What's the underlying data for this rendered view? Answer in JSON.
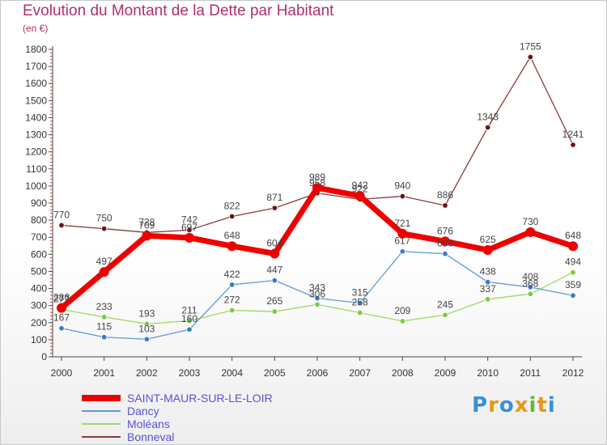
{
  "title": "Evolution du Montant de la Dette par Habitant",
  "subtitle": "(en €)",
  "logo": {
    "text": "Proxiti",
    "colors": [
      "#3a8fd8",
      "#e8961a",
      "#3a8fd8",
      "#e8961a",
      "#5fb93a",
      "#e8961a",
      "#3a8fd8"
    ]
  },
  "chart_data": {
    "type": "line",
    "x": [
      "2000",
      "2001",
      "2002",
      "2003",
      "2004",
      "2005",
      "2006",
      "2007",
      "2008",
      "2009",
      "2010",
      "2011",
      "2012"
    ],
    "ylim": [
      0,
      1800
    ],
    "yticks": [
      0,
      100,
      200,
      300,
      400,
      500,
      600,
      700,
      800,
      900,
      1000,
      1100,
      1200,
      1300,
      1400,
      1500,
      1600,
      1700,
      1800
    ],
    "grid": false,
    "legend": "bottom-left",
    "series": [
      {
        "name": "SAINT-MAUR-SUR-LE-LOIR",
        "color": "#ee0000",
        "marker": "#ee0000",
        "width": "heavy",
        "values": [
          286,
          497,
          709,
          697,
          648,
          604,
          989,
          942,
          721,
          676,
          625,
          730,
          648
        ]
      },
      {
        "name": "Dancy",
        "color": "#5b9ad8",
        "marker": "#3a7cc4",
        "width": "thin",
        "values": [
          167,
          115,
          103,
          160,
          422,
          447,
          343,
          315,
          617,
          603,
          438,
          408,
          359
        ]
      },
      {
        "name": "Moléans",
        "color": "#9ed866",
        "marker": "#7dc940",
        "width": "thin",
        "values": [
          277,
          233,
          193,
          211,
          272,
          265,
          306,
          258,
          209,
          245,
          337,
          368,
          494
        ]
      },
      {
        "name": "Bonneval",
        "color": "#8b3a3a",
        "marker": "#6b1515",
        "width": "thin",
        "values": [
          770,
          750,
          728,
          742,
          822,
          871,
          958,
          922,
          940,
          886,
          1343,
          1755,
          1241
        ]
      }
    ]
  }
}
